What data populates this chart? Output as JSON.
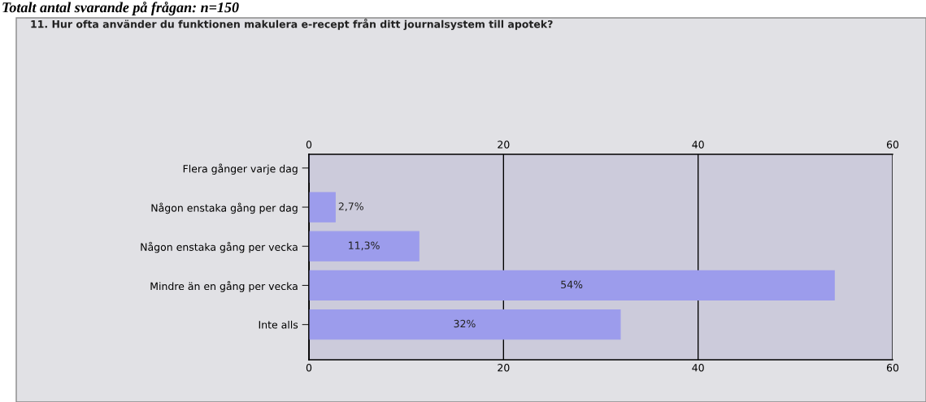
{
  "chart_data": {
    "type": "bar",
    "orientation": "horizontal",
    "title": "11. Hur ofta använder du funktionen makulera e-recept från ditt journalsystem till apotek?",
    "annotations": [
      "Totalt antal svarande på frågan: n=150"
    ],
    "categories": [
      "Flera gånger varje dag",
      "Någon enstaka gång per dag",
      "Någon enstaka gång per vecka",
      "Mindre än en gång per vecka",
      "Inte alls"
    ],
    "values": [
      0,
      2.7,
      11.3,
      54,
      32
    ],
    "value_labels": [
      null,
      "2,7%",
      "11,3%",
      "54%",
      "32%"
    ],
    "color": "#9c9cec",
    "xlim": [
      0,
      60
    ],
    "xticks": [
      0,
      20,
      40,
      60
    ],
    "x2lim": [
      0,
      60
    ],
    "x2ticks": [
      0,
      20,
      40,
      60
    ],
    "grid": "x",
    "legend": false
  }
}
